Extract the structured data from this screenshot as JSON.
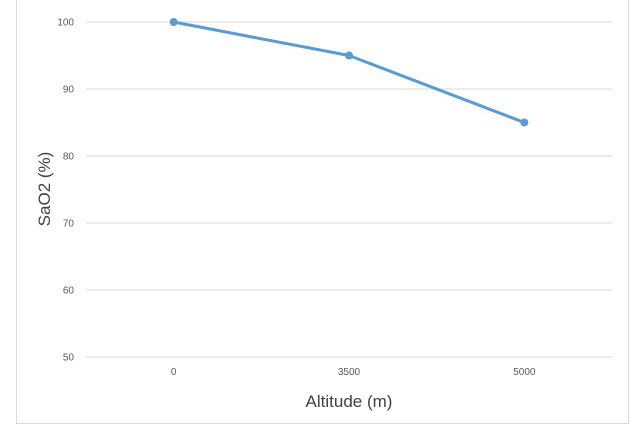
{
  "chart_data": {
    "type": "line",
    "categories": [
      "0",
      "3500",
      "5000"
    ],
    "series": [
      {
        "values": [
          100,
          95,
          85
        ]
      }
    ],
    "xlabel": "Altitude (m)",
    "ylabel": "SaO2 (%)",
    "ylim": [
      50,
      100
    ],
    "yticks": [
      50,
      60,
      70,
      80,
      90,
      100
    ],
    "grid": true,
    "color": "#5b9bd5"
  }
}
